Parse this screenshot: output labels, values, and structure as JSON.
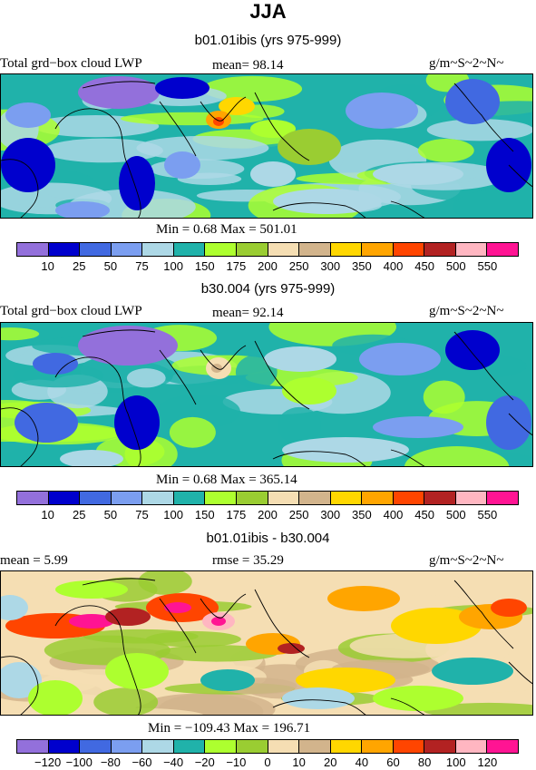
{
  "title": "JJA",
  "palette": [
    "#9370db",
    "#0000cd",
    "#4169e1",
    "#7b9ef0",
    "#add8e6",
    "#20b2aa",
    "#adff2f",
    "#9acd32",
    "#f5deb3",
    "#d2b48c",
    "#ffd700",
    "#ffa500",
    "#ff4500",
    "#b22222",
    "#ffb6c1",
    "#ff1493"
  ],
  "chart_data": [
    {
      "type": "heatmap",
      "title": "b01.01ibis (yrs 975-999)",
      "left_label": "Total grd−box cloud LWP",
      "stat_label": "mean=  98.14",
      "units": "g/m~S~2~N~",
      "minmax_label": "Min =    0.68 Max = 501.01",
      "min": 0.68,
      "max": 501.01,
      "mean": 98.14,
      "levels": [
        "10",
        "25",
        "50",
        "75",
        "100",
        "150",
        "175",
        "200",
        "250",
        "300",
        "350",
        "400",
        "450",
        "500",
        "550"
      ]
    },
    {
      "type": "heatmap",
      "title": "b30.004 (yrs 975-999)",
      "left_label": "Total grd−box cloud LWP",
      "stat_label": "mean=  92.14",
      "units": "g/m~S~2~N~",
      "minmax_label": "Min =    0.68 Max = 365.14",
      "min": 0.68,
      "max": 365.14,
      "mean": 92.14,
      "levels": [
        "10",
        "25",
        "50",
        "75",
        "100",
        "150",
        "175",
        "200",
        "250",
        "300",
        "350",
        "400",
        "450",
        "500",
        "550"
      ]
    },
    {
      "type": "heatmap",
      "title": "b01.01ibis - b30.004",
      "left_label": "mean =   5.99",
      "stat_label": "rmse =  35.29",
      "units": "g/m~S~2~N~",
      "minmax_label": "Min = −109.43 Max = 196.71",
      "min": -109.43,
      "max": 196.71,
      "mean": 5.99,
      "rmse": 35.29,
      "levels": [
        "−120",
        "−100",
        "−80",
        "−60",
        "−40",
        "−20",
        "−10",
        "0",
        "10",
        "20",
        "40",
        "60",
        "80",
        "100",
        "120"
      ]
    }
  ]
}
